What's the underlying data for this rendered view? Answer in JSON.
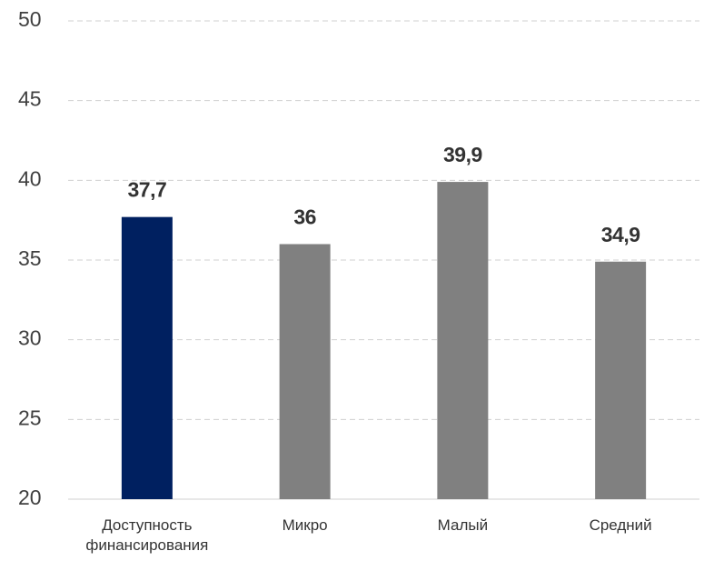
{
  "chart_data": {
    "type": "bar",
    "categories": [
      "Доступность финансирования",
      "Микро",
      "Малый",
      "Средний"
    ],
    "values": [
      37.7,
      36,
      39.9,
      34.9
    ],
    "value_labels": [
      "37,7",
      "36",
      "39,9",
      "34,9"
    ],
    "colors": [
      "#002060",
      "#808080",
      "#808080",
      "#808080"
    ],
    "ylim": [
      20,
      50
    ],
    "yticks": [
      20,
      25,
      30,
      35,
      40,
      45,
      50
    ],
    "grid": true
  }
}
